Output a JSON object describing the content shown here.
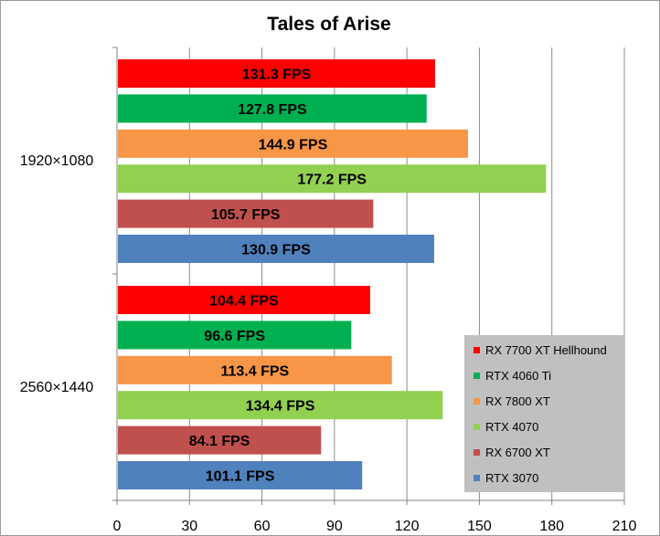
{
  "chart_data": {
    "type": "bar",
    "orientation": "horizontal",
    "title": "Tales of Arise",
    "categories": [
      "1920×1080",
      "2560×1440"
    ],
    "xlim": [
      0,
      210
    ],
    "xticks": [
      "0",
      "30",
      "60",
      "90",
      "120",
      "150",
      "180",
      "210"
    ],
    "grid": true,
    "legend_position": "bottom-right",
    "series": [
      {
        "name": "RX 7700 XT Hellhound",
        "color": "#ff0000",
        "values": [
          131.3,
          104.4
        ],
        "labels": [
          "131.3 FPS",
          "104.4 FPS"
        ]
      },
      {
        "name": "RTX 4060 Ti",
        "color": "#00b050",
        "values": [
          127.8,
          96.6
        ],
        "labels": [
          "127.8 FPS",
          "96.6 FPS"
        ]
      },
      {
        "name": "RX 7800 XT",
        "color": "#f79646",
        "values": [
          144.9,
          113.4
        ],
        "labels": [
          "144.9 FPS",
          "113.4 FPS"
        ]
      },
      {
        "name": "RTX 4070",
        "color": "#92d050",
        "values": [
          177.2,
          134.4
        ],
        "labels": [
          "177.2 FPS",
          "134.4 FPS"
        ]
      },
      {
        "name": "RX 6700 XT",
        "color": "#c0504d",
        "values": [
          105.7,
          84.1
        ],
        "labels": [
          "105.7 FPS",
          "84.1 FPS"
        ]
      },
      {
        "name": "RTX 3070",
        "color": "#4f81bd",
        "values": [
          130.9,
          101.1
        ],
        "labels": [
          "130.9 FPS",
          "101.1 FPS"
        ]
      }
    ]
  }
}
